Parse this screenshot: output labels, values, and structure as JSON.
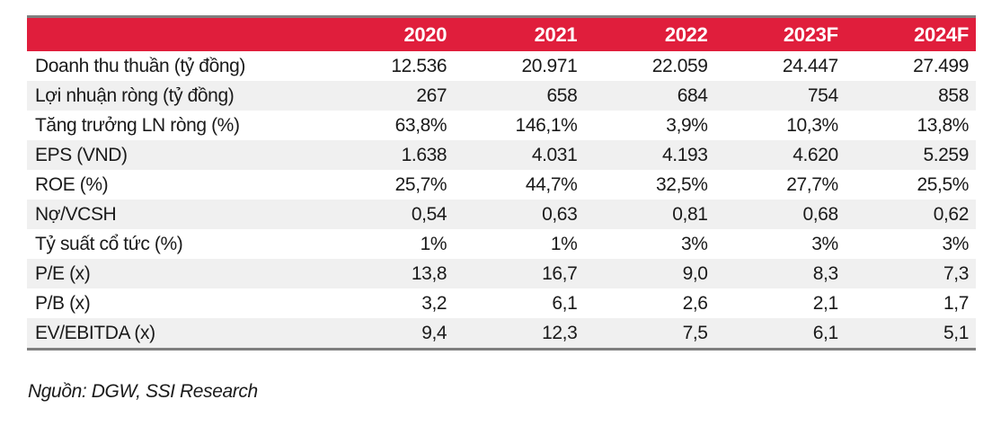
{
  "colors": {
    "header_bg": "#E01E3C",
    "header_text": "#FFFFFF",
    "stripe_bg": "#F0F0F0",
    "border_dark": "#7F7F7F",
    "text": "#1A1A1A"
  },
  "chart_data": {
    "type": "table",
    "columns": [
      "2020",
      "2021",
      "2022",
      "2023F",
      "2024F"
    ],
    "rows": [
      {
        "label": "Doanh thu thuần (tỷ đồng)",
        "values": [
          "12.536",
          "20.971",
          "22.059",
          "24.447",
          "27.499"
        ]
      },
      {
        "label": "Lợi nhuận ròng (tỷ đồng)",
        "values": [
          "267",
          "658",
          "684",
          "754",
          "858"
        ]
      },
      {
        "label": "Tăng trưởng LN ròng (%)",
        "values": [
          "63,8%",
          "146,1%",
          "3,9%",
          "10,3%",
          "13,8%"
        ]
      },
      {
        "label": "EPS (VND)",
        "values": [
          "1.638",
          "4.031",
          "4.193",
          "4.620",
          "5.259"
        ]
      },
      {
        "label": "ROE (%)",
        "values": [
          "25,7%",
          "44,7%",
          "32,5%",
          "27,7%",
          "25,5%"
        ]
      },
      {
        "label": "Nợ/VCSH",
        "values": [
          "0,54",
          "0,63",
          "0,81",
          "0,68",
          "0,62"
        ]
      },
      {
        "label": "Tỷ suất cổ tức (%)",
        "values": [
          "1%",
          "1%",
          "3%",
          "3%",
          "3%"
        ]
      },
      {
        "label": "P/E (x)",
        "values": [
          "13,8",
          "16,7",
          "9,0",
          "8,3",
          "7,3"
        ]
      },
      {
        "label": "P/B (x)",
        "values": [
          "3,2",
          "6,1",
          "2,6",
          "2,1",
          "1,7"
        ]
      },
      {
        "label": "EV/EBITDA (x)",
        "values": [
          "9,4",
          "12,3",
          "7,5",
          "6,1",
          "5,1"
        ]
      }
    ],
    "source": "Nguồn: DGW, SSI Research",
    "legend_position": "none",
    "grid": "row-stripes"
  }
}
